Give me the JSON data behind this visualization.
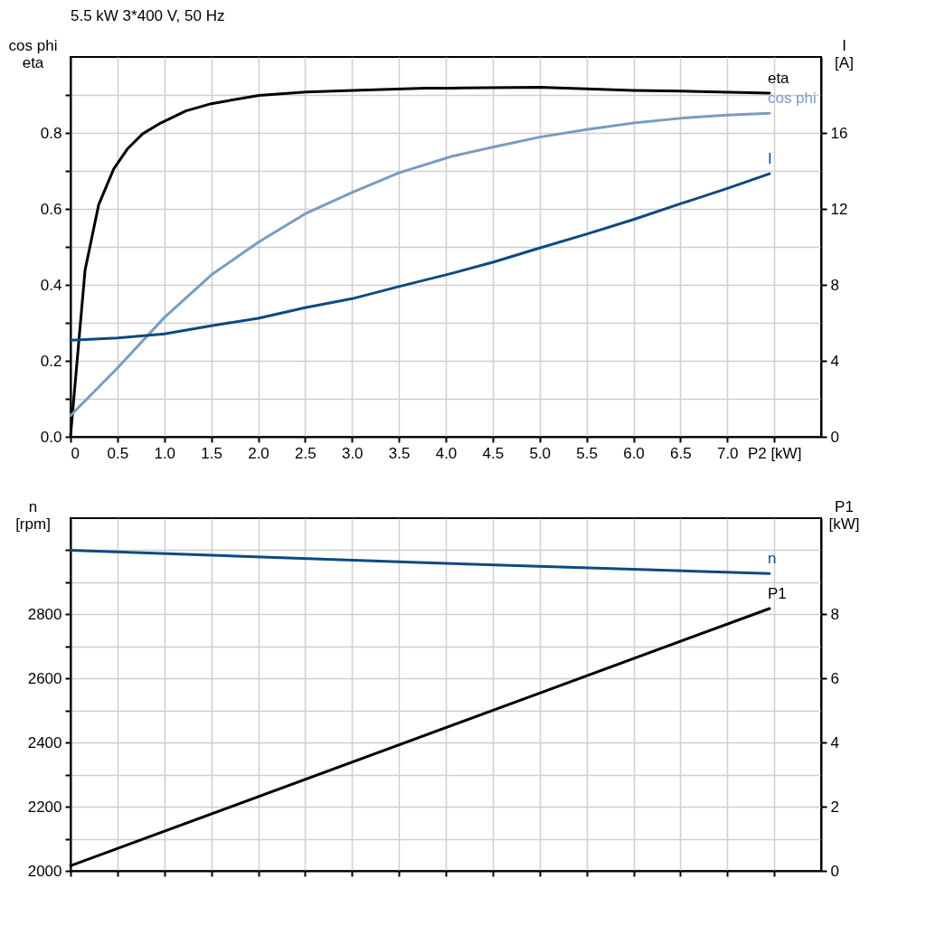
{
  "chart_data": [
    {
      "type": "line",
      "title": "5.5 kW   3*400 V, 50 Hz",
      "ylabel": "cos phi\neta",
      "y2label": "I\n[A]",
      "xlim": [
        0,
        8
      ],
      "xticks": [
        0,
        0.5,
        {
          "value": 1,
          "label": "1.0"
        },
        1.5,
        {
          "value": 2,
          "label": "2.0"
        },
        2.5,
        {
          "value": 3,
          "label": "3.0"
        },
        3.5,
        {
          "value": 4,
          "label": "4.0"
        },
        4.5,
        {
          "value": 5,
          "label": "5.0"
        },
        5.5,
        {
          "value": 6,
          "label": "6.0"
        },
        6.5,
        {
          "value": 7,
          "label": "7.0"
        },
        {
          "value": 7.5,
          "label": "P2 [kW]"
        }
      ],
      "ylim": [
        0,
        1
      ],
      "yticks": [
        {
          "value": 0,
          "label": "0.0"
        },
        {
          "value": 0.1,
          "label": null
        },
        0.2,
        {
          "value": 0.3,
          "label": null
        },
        0.4,
        {
          "value": 0.5,
          "label": null
        },
        0.6,
        {
          "value": 0.7,
          "label": null
        },
        0.8,
        {
          "value": 0.9,
          "label": null
        }
      ],
      "y2lim": [
        0,
        20
      ],
      "y2ticks": [
        0,
        4,
        8,
        12,
        16
      ],
      "grid": true,
      "series": [
        {
          "name": "eta",
          "color": "#000000",
          "x": [
            0,
            0.155,
            0.3,
            0.46,
            0.61,
            0.77,
            0.96,
            1.23,
            1.5,
            2.01,
            2.51,
            3.01,
            3.78,
            4.06,
            5.0,
            6.0,
            6.52,
            7.45
          ],
          "values": [
            0.002,
            0.439,
            0.611,
            0.705,
            0.759,
            0.798,
            0.826,
            0.858,
            0.877,
            0.899,
            0.908,
            0.912,
            0.918,
            0.918,
            0.92,
            0.912,
            0.91,
            0.905
          ]
        },
        {
          "name": "cos phi",
          "color": "#7a9cbf",
          "x": [
            0,
            0.5,
            1.0,
            1.5,
            2.0,
            2.5,
            3.0,
            3.5,
            4.06,
            4.51,
            5.0,
            5.5,
            6.0,
            6.52,
            7.0,
            7.45
          ],
          "values": [
            0.056,
            0.181,
            0.314,
            0.426,
            0.512,
            0.587,
            0.643,
            0.695,
            0.738,
            0.763,
            0.789,
            0.809,
            0.826,
            0.839,
            0.847,
            0.852
          ]
        },
        {
          "name": "I",
          "color": "#0d4a80",
          "axis": "y2",
          "x": [
            0,
            0.5,
            1.0,
            1.5,
            2.0,
            2.5,
            3.0,
            3.5,
            4.06,
            4.51,
            5.0,
            5.5,
            6.0,
            6.52,
            7.0,
            7.45
          ],
          "values": [
            5.08,
            5.2,
            5.42,
            5.85,
            6.24,
            6.8,
            7.27,
            7.91,
            8.6,
            9.2,
            9.94,
            10.67,
            11.44,
            12.3,
            13.08,
            13.85
          ]
        }
      ]
    },
    {
      "type": "line",
      "ylabel": "n\n[rpm]",
      "y2label": "P1\n[kW]",
      "xlim": [
        0,
        8
      ],
      "tick_labels": "y",
      "xticks": [
        {
          "value": 0,
          "label": null
        },
        {
          "value": 0.5,
          "label": null
        },
        {
          "value": 1,
          "label": null
        },
        {
          "value": 1.5,
          "label": null
        },
        {
          "value": 2,
          "label": null
        },
        {
          "value": 2.5,
          "label": null
        },
        {
          "value": 3,
          "label": null
        },
        {
          "value": 3.5,
          "label": null
        },
        {
          "value": 4,
          "label": null
        },
        {
          "value": 4.5,
          "label": null
        },
        {
          "value": 5,
          "label": null
        },
        {
          "value": 5.5,
          "label": null
        },
        {
          "value": 6,
          "label": null
        },
        {
          "value": 6.5,
          "label": null
        },
        {
          "value": 7,
          "label": null
        },
        {
          "value": 7.5,
          "label": null
        }
      ],
      "ylim": [
        2000,
        3100
      ],
      "yticks": [
        2000,
        {
          "value": 2100,
          "label": null
        },
        2200,
        {
          "value": 2300,
          "label": null
        },
        2400,
        {
          "value": 2500,
          "label": null
        },
        2600,
        {
          "value": 2700,
          "label": null
        },
        2800,
        {
          "value": 2900,
          "label": null
        },
        {
          "value": 3000,
          "label": null
        }
      ],
      "y2lim": [
        0,
        11
      ],
      "y2ticks": [
        0,
        2,
        4,
        6,
        8
      ],
      "grid": true,
      "series": [
        {
          "name": "n",
          "color": "#0d4a80",
          "x": [
            0,
            3.78,
            7.45
          ],
          "values": [
            3000,
            2961,
            2927
          ]
        },
        {
          "name": "P1",
          "color": "#000000",
          "axis": "y2",
          "x": [
            0,
            7.45
          ],
          "values": [
            0.16,
            8.18
          ]
        }
      ]
    }
  ]
}
